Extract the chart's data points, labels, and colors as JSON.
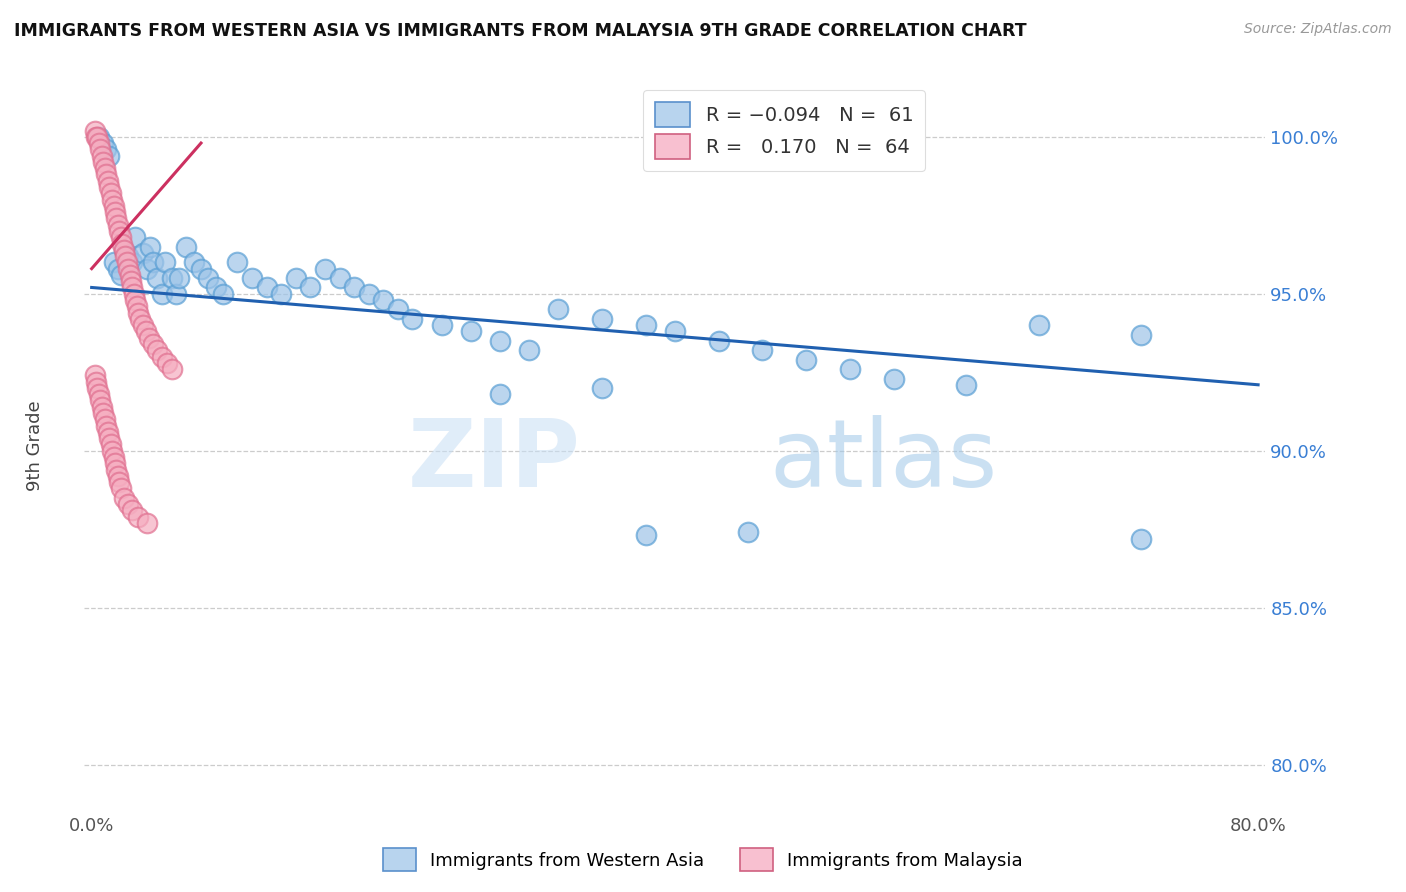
{
  "title": "IMMIGRANTS FROM WESTERN ASIA VS IMMIGRANTS FROM MALAYSIA 9TH GRADE CORRELATION CHART",
  "source": "Source: ZipAtlas.com",
  "ylabel": "9th Grade",
  "blue_color": "#9ec4e8",
  "blue_edge_color": "#5a9fd4",
  "pink_color": "#f5adc0",
  "pink_edge_color": "#e07090",
  "trend_blue_color": "#2060b0",
  "trend_pink_color": "#cc3060",
  "watermark_zip": "ZIP",
  "watermark_atlas": "atlas",
  "ylim_low": 0.785,
  "ylim_high": 1.018,
  "xlim_low": -0.005,
  "xlim_high": 0.805,
  "blue_trend_x0": 0.0,
  "blue_trend_x1": 0.8,
  "blue_trend_y0": 0.952,
  "blue_trend_y1": 0.921,
  "pink_trend_x0": 0.0,
  "pink_trend_x1": 0.075,
  "pink_trend_y0": 0.958,
  "pink_trend_y1": 0.998,
  "blue_x": [
    0.005,
    0.008,
    0.01,
    0.012,
    0.015,
    0.018,
    0.02,
    0.022,
    0.025,
    0.028,
    0.03,
    0.035,
    0.038,
    0.04,
    0.042,
    0.045,
    0.048,
    0.05,
    0.055,
    0.058,
    0.06,
    0.065,
    0.07,
    0.075,
    0.08,
    0.085,
    0.09,
    0.1,
    0.11,
    0.12,
    0.13,
    0.14,
    0.15,
    0.16,
    0.17,
    0.18,
    0.19,
    0.2,
    0.21,
    0.22,
    0.24,
    0.26,
    0.28,
    0.3,
    0.32,
    0.35,
    0.38,
    0.4,
    0.43,
    0.46,
    0.49,
    0.52,
    0.55,
    0.6,
    0.65,
    0.72,
    0.35,
    0.28,
    0.45,
    0.38,
    0.72
  ],
  "blue_y": [
    1.0,
    0.998,
    0.996,
    0.994,
    0.96,
    0.958,
    0.956,
    0.964,
    0.962,
    0.96,
    0.968,
    0.963,
    0.958,
    0.965,
    0.96,
    0.955,
    0.95,
    0.96,
    0.955,
    0.95,
    0.955,
    0.965,
    0.96,
    0.958,
    0.955,
    0.952,
    0.95,
    0.96,
    0.955,
    0.952,
    0.95,
    0.955,
    0.952,
    0.958,
    0.955,
    0.952,
    0.95,
    0.948,
    0.945,
    0.942,
    0.94,
    0.938,
    0.935,
    0.932,
    0.945,
    0.942,
    0.94,
    0.938,
    0.935,
    0.932,
    0.929,
    0.926,
    0.923,
    0.921,
    0.94,
    0.937,
    0.92,
    0.918,
    0.874,
    0.873,
    0.872
  ],
  "pink_x": [
    0.002,
    0.003,
    0.004,
    0.005,
    0.006,
    0.007,
    0.008,
    0.009,
    0.01,
    0.011,
    0.012,
    0.013,
    0.014,
    0.015,
    0.016,
    0.017,
    0.018,
    0.019,
    0.02,
    0.021,
    0.022,
    0.023,
    0.024,
    0.025,
    0.026,
    0.027,
    0.028,
    0.029,
    0.03,
    0.031,
    0.032,
    0.033,
    0.035,
    0.037,
    0.039,
    0.042,
    0.045,
    0.048,
    0.052,
    0.055,
    0.002,
    0.003,
    0.004,
    0.005,
    0.006,
    0.007,
    0.008,
    0.009,
    0.01,
    0.011,
    0.012,
    0.013,
    0.014,
    0.015,
    0.016,
    0.017,
    0.018,
    0.019,
    0.02,
    0.022,
    0.025,
    0.028,
    0.032,
    0.038
  ],
  "pink_y": [
    1.002,
    1.0,
    1.0,
    0.998,
    0.996,
    0.994,
    0.992,
    0.99,
    0.988,
    0.986,
    0.984,
    0.982,
    0.98,
    0.978,
    0.976,
    0.974,
    0.972,
    0.97,
    0.968,
    0.966,
    0.964,
    0.962,
    0.96,
    0.958,
    0.956,
    0.954,
    0.952,
    0.95,
    0.948,
    0.946,
    0.944,
    0.942,
    0.94,
    0.938,
    0.936,
    0.934,
    0.932,
    0.93,
    0.928,
    0.926,
    0.924,
    0.922,
    0.92,
    0.918,
    0.916,
    0.914,
    0.912,
    0.91,
    0.908,
    0.906,
    0.904,
    0.902,
    0.9,
    0.898,
    0.896,
    0.894,
    0.892,
    0.89,
    0.888,
    0.885,
    0.883,
    0.881,
    0.879,
    0.877
  ]
}
